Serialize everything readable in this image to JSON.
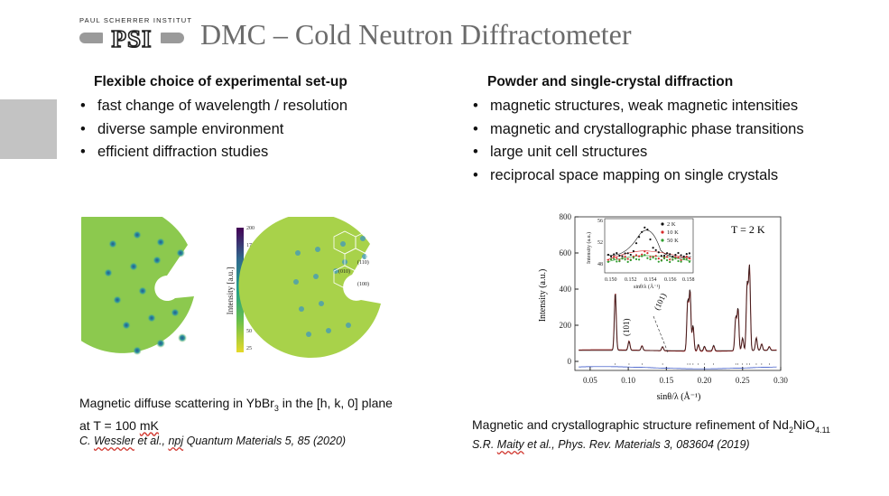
{
  "header": {
    "institute_label": "PAUL SCHERRER INSTITUT",
    "logo_text": "PSI",
    "title": "DMC – Cold Neutron Diffractometer"
  },
  "left": {
    "heading": "Flexible choice of experimental set-up",
    "bullets": [
      "fast change of wavelength / resolution",
      "diverse sample environment",
      "efficient diffraction studies"
    ],
    "caption_part1": "Magnetic diffuse scattering in YbBr",
    "caption_sub": "3",
    "caption_part2": " in the [h, k, 0] plane",
    "caption_line2_a": "at T = 100 ",
    "caption_line2_b": "mK",
    "citation_a": "C. ",
    "citation_b": "Wessler",
    "citation_c": " et al., ",
    "citation_d": "npj",
    "citation_e": " Quantum Materials 5, 85 (2020)",
    "colorbar": {
      "label": "Intensity [a.u.]",
      "ticks": [
        "200",
        "175",
        "150",
        "125",
        "100",
        "75",
        "50",
        "25"
      ]
    },
    "hex_labels": [
      "(110)",
      "(010)",
      "(100)"
    ],
    "colors": {
      "map_bg": "#9ed04a",
      "peak": "#2b7fa0"
    }
  },
  "right": {
    "heading": "Powder and single-crystal diffraction",
    "bullets": [
      "magnetic structures, weak magnetic intensities",
      "magnetic and crystallographic phase transitions",
      "large unit cell structures",
      "reciprocal space mapping on single crystals"
    ],
    "caption_a": "Magnetic and crystallographic structure refinement of Nd",
    "caption_sub1": "2",
    "caption_b": "NiO",
    "caption_sub2": "4.11",
    "citation_a": "S.R. ",
    "citation_b": "Maity",
    "citation_c": " et al., Phys. Rev. Materials 3, 083604 (2019)"
  },
  "chart_data": {
    "type": "line",
    "title": "T = 2 K",
    "xlabel": "sinθ/λ (Å⁻¹)",
    "ylabel": "Intensity (a.u.)",
    "xlim": [
      0.03,
      0.3
    ],
    "ylim": [
      -50,
      800
    ],
    "xticks": [
      "0.05",
      "0.10",
      "0.15",
      "0.20",
      "0.25",
      "0.30"
    ],
    "yticks": [
      "0",
      "200",
      "400",
      "600",
      "800"
    ],
    "baseline": 60,
    "peaks": [
      {
        "x": 0.083,
        "y": 380
      },
      {
        "x": 0.101,
        "y": 110
      },
      {
        "x": 0.118,
        "y": 85
      },
      {
        "x": 0.145,
        "y": 82
      },
      {
        "x": 0.178,
        "y": 330
      },
      {
        "x": 0.181,
        "y": 390
      },
      {
        "x": 0.185,
        "y": 200
      },
      {
        "x": 0.192,
        "y": 95
      },
      {
        "x": 0.2,
        "y": 85
      },
      {
        "x": 0.212,
        "y": 90
      },
      {
        "x": 0.241,
        "y": 240
      },
      {
        "x": 0.244,
        "y": 290
      },
      {
        "x": 0.25,
        "y": 130
      },
      {
        "x": 0.256,
        "y": 420
      },
      {
        "x": 0.259,
        "y": 520
      },
      {
        "x": 0.268,
        "y": 130
      },
      {
        "x": 0.275,
        "y": 95
      },
      {
        "x": 0.285,
        "y": 80
      }
    ],
    "annotations": [
      "(101)",
      "(101)"
    ],
    "inset": {
      "xlabel": "sinθ/λ (Å⁻¹)",
      "ylabel": "Intensity (a.u.)",
      "xticks": [
        "0.150",
        "0.152",
        "0.154",
        "0.156",
        "0.158"
      ],
      "yticks": [
        "48",
        "52",
        "56"
      ],
      "series": [
        {
          "name": "2 K",
          "color": "#111111"
        },
        {
          "name": "10 K",
          "color": "#d62a2a"
        },
        {
          "name": "50 K",
          "color": "#2f9e2f"
        }
      ]
    },
    "colors": {
      "observed": "#8b1a1a",
      "calc": "#222222",
      "difference": "#2040c0",
      "ticks": "#444444"
    }
  }
}
